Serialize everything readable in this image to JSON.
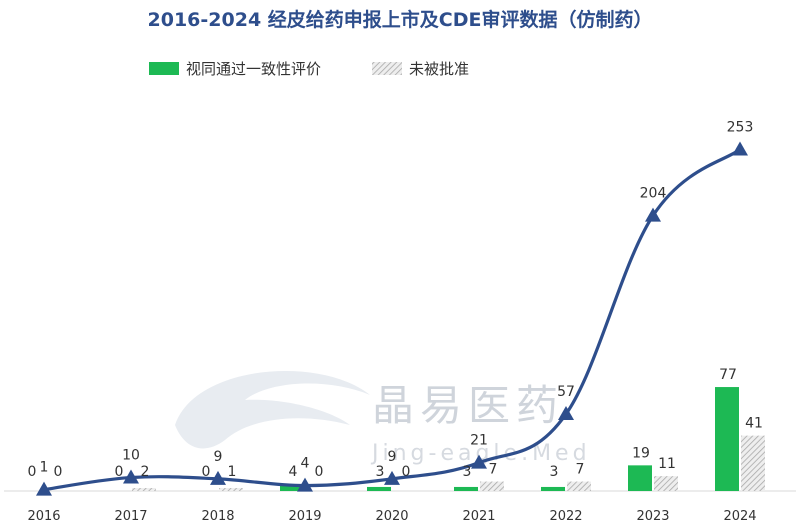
{
  "chart_data": {
    "type": "bar",
    "title": "2016-2024 经皮给药申报上市及CDE审评数据（仿制药）",
    "categories": [
      "2016",
      "2017",
      "2018",
      "2019",
      "2020",
      "2021",
      "2022",
      "2023",
      "2024"
    ],
    "series": [
      {
        "name": "视同通过一致性评价",
        "type": "bar",
        "color": "#1db954",
        "values": [
          0,
          0,
          0,
          4,
          3,
          3,
          3,
          19,
          77
        ]
      },
      {
        "name": "未被批准",
        "type": "bar",
        "color": "#bdbdbd",
        "pattern": "hatch",
        "values": [
          0,
          2,
          1,
          0,
          0,
          7,
          7,
          11,
          41
        ]
      },
      {
        "type": "line",
        "color": "#2e4e8c",
        "marker": "triangle",
        "values": [
          1,
          10,
          9,
          4,
          9,
          21,
          57,
          204,
          253
        ]
      }
    ],
    "legend": {
      "position": "top"
    },
    "grid": false,
    "ylim": [
      0,
      280
    ]
  },
  "watermark": {
    "text_cn": "晶易医药",
    "text_en": "Jing-eagle.Med"
  }
}
